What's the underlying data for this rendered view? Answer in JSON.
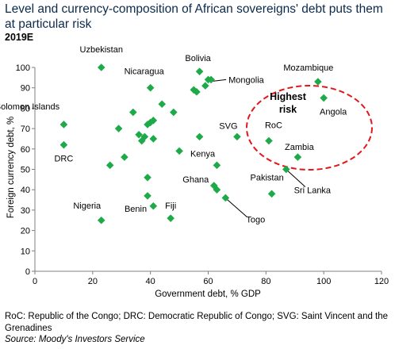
{
  "title": "Level and currency-composition of African sovereigns' debt puts them at particular risk",
  "subtitle": "2019E",
  "footnote": "RoC: Republic of the Congo; DRC: Democratic Republic of Congo; SVG: Saint Vincent and the Grenadines",
  "source": "Source: Moody's Investors Service",
  "colors": {
    "marker": "#1faa4a",
    "highlight": "#e3161b",
    "axis": "#7f7f7f"
  },
  "chart_data": {
    "type": "scatter",
    "title": "",
    "xlabel": "Government debt, % GDP",
    "ylabel": "Foreign currency debt, %",
    "xlim": [
      0,
      120
    ],
    "ylim": [
      0,
      100
    ],
    "xticks": [
      0,
      20,
      40,
      60,
      80,
      100,
      120
    ],
    "yticks": [
      0,
      10,
      20,
      30,
      40,
      50,
      60,
      70,
      80,
      90,
      100
    ],
    "grid": false,
    "highlight_label": "Highest risk",
    "points": [
      {
        "x": 23,
        "y": 100,
        "label": "Uzbekistan"
      },
      {
        "x": 10,
        "y": 72,
        "label": "Solomon Islands"
      },
      {
        "x": 10,
        "y": 62,
        "label": "DRC"
      },
      {
        "x": 23,
        "y": 25,
        "label": "Nigeria"
      },
      {
        "x": 39,
        "y": 37,
        "label": "Benin"
      },
      {
        "x": 47,
        "y": 26,
        "label": "Fiji"
      },
      {
        "x": 40,
        "y": 90,
        "label": "Nicaragua"
      },
      {
        "x": 57,
        "y": 98,
        "label": "Bolivia"
      },
      {
        "x": 61,
        "y": 94,
        "label": "Mongolia"
      },
      {
        "x": 70,
        "y": 66,
        "label": "SVG"
      },
      {
        "x": 57,
        "y": 66,
        "label": "Kenya"
      },
      {
        "x": 62,
        "y": 42,
        "label": "Ghana"
      },
      {
        "x": 66,
        "y": 36,
        "label": "Togo"
      },
      {
        "x": 82,
        "y": 38,
        "label": "Pakistan"
      },
      {
        "x": 87,
        "y": 50,
        "label": "Sri Lanka"
      },
      {
        "x": 81,
        "y": 64,
        "label": "RoC"
      },
      {
        "x": 91,
        "y": 56,
        "label": "Zambia"
      },
      {
        "x": 100,
        "y": 85,
        "label": "Angola"
      },
      {
        "x": 98,
        "y": 93,
        "label": "Mozambique"
      },
      {
        "x": 26,
        "y": 52
      },
      {
        "x": 29,
        "y": 70
      },
      {
        "x": 31,
        "y": 56
      },
      {
        "x": 34,
        "y": 78
      },
      {
        "x": 36,
        "y": 67
      },
      {
        "x": 37,
        "y": 64
      },
      {
        "x": 38,
        "y": 66
      },
      {
        "x": 39,
        "y": 72
      },
      {
        "x": 40,
        "y": 73
      },
      {
        "x": 41,
        "y": 74
      },
      {
        "x": 41,
        "y": 65
      },
      {
        "x": 44,
        "y": 82
      },
      {
        "x": 39,
        "y": 46
      },
      {
        "x": 41,
        "y": 32
      },
      {
        "x": 48,
        "y": 78
      },
      {
        "x": 50,
        "y": 59
      },
      {
        "x": 55,
        "y": 89
      },
      {
        "x": 56,
        "y": 88
      },
      {
        "x": 59,
        "y": 91
      },
      {
        "x": 60,
        "y": 94
      },
      {
        "x": 63,
        "y": 52
      },
      {
        "x": 63,
        "y": 40
      }
    ]
  }
}
